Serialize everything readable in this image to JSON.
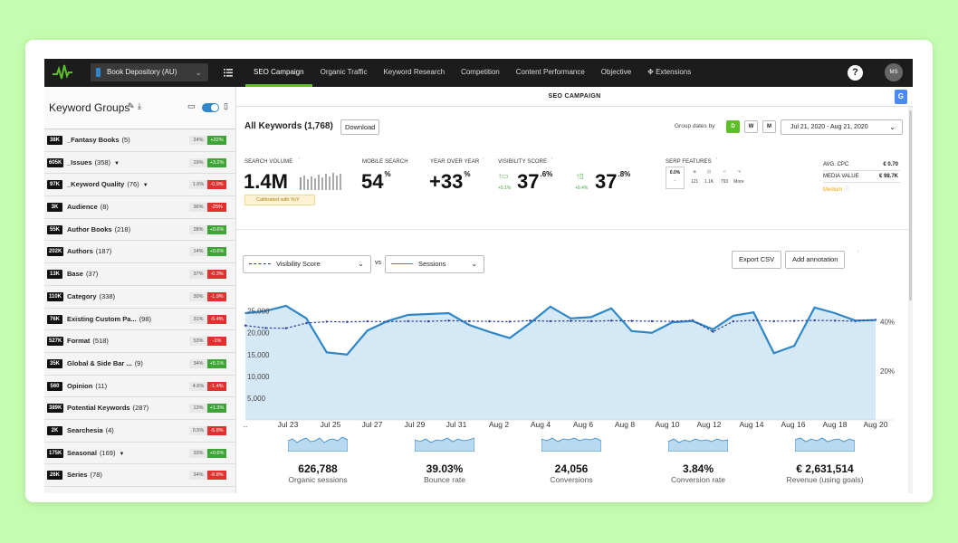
{
  "nav": {
    "account": "Book Depository (AU)",
    "tabs": [
      "SEO Campaign",
      "Organic Traffic",
      "Keyword Research",
      "Competition",
      "Content Performance",
      "Objective",
      "Extensions"
    ],
    "active_tab": 0,
    "help": "?",
    "avatar": "MS"
  },
  "sidebar": {
    "title": "Keyword Groups",
    "items": [
      {
        "badge": "38K",
        "name": "_Fantasy Books",
        "count": "(5)",
        "pct": "24%",
        "chg": "+22%",
        "up": true
      },
      {
        "badge": "605K",
        "name": "_Issues",
        "count": "(358)",
        "pct": "19%",
        "chg": "+3.2%",
        "up": true,
        "caret": true
      },
      {
        "badge": "97K",
        "name": "_Keyword Quality",
        "count": "(76)",
        "pct": "1.6%",
        "chg": "-0.9%",
        "up": false,
        "caret": true
      },
      {
        "badge": "3K",
        "name": "Audience",
        "count": "(8)",
        "pct": "36%",
        "chg": "-25%",
        "up": false
      },
      {
        "badge": "55K",
        "name": "Author Books",
        "count": "(218)",
        "pct": "28%",
        "chg": "+0.6%",
        "up": true
      },
      {
        "badge": "202K",
        "name": "Authors",
        "count": "(187)",
        "pct": "14%",
        "chg": "+0.6%",
        "up": true
      },
      {
        "badge": "13K",
        "name": "Base",
        "count": "(37)",
        "pct": "37%",
        "chg": "-0.3%",
        "up": false
      },
      {
        "badge": "110K",
        "name": "Category",
        "count": "(338)",
        "pct": "30%",
        "chg": "-1.9%",
        "up": false
      },
      {
        "badge": "76K",
        "name": "Existing Custom Pa...",
        "count": "(98)",
        "pct": "31%",
        "chg": "-5.4%",
        "up": false
      },
      {
        "badge": "527K",
        "name": "Format",
        "count": "(518)",
        "pct": "53%",
        "chg": "-1%",
        "up": false
      },
      {
        "badge": "35K",
        "name": "Global & Side Bar ...",
        "count": "(9)",
        "pct": "34%",
        "chg": "+5.1%",
        "up": true
      },
      {
        "badge": "560",
        "name": "Opinion",
        "count": "(11)",
        "pct": "4.6%",
        "chg": "-1.4%",
        "up": false
      },
      {
        "badge": "389K",
        "name": "Potential Keywords",
        "count": "(287)",
        "pct": "13%",
        "chg": "+1.3%",
        "up": true
      },
      {
        "badge": "2K",
        "name": "Searchesia",
        "count": "(4)",
        "pct": "0.5%",
        "chg": "-5.8%",
        "up": false
      },
      {
        "badge": "175K",
        "name": "Seasonal",
        "count": "(169)",
        "pct": "33%",
        "chg": "+0.6%",
        "up": true,
        "caret": true
      },
      {
        "badge": "26K",
        "name": "Series",
        "count": "(78)",
        "pct": "34%",
        "chg": "-8.8%",
        "up": false
      }
    ]
  },
  "header": {
    "title": "SEO CAMPAIGN",
    "translate_icon": "G"
  },
  "toolbar": {
    "all_keywords": "All Keywords (1,768)",
    "download": "Download",
    "group_dates": "Group dates by",
    "d": "D",
    "w": "W",
    "m": "M",
    "date_range": "Jul 21, 2020 - Aug 21, 2020"
  },
  "metrics": {
    "search_volume": {
      "label": "SEARCH VOLUME",
      "value": "1.4M",
      "calibrated": "Calibrated with YoY"
    },
    "mobile_search": {
      "label": "MOBILE SEARCH",
      "value": "54",
      "unit": "%"
    },
    "yoy": {
      "label": "YEAR OVER YEAR",
      "value": "+33",
      "unit": "%"
    },
    "visibility": {
      "label": "VISIBILITY SCORE",
      "desk_value": "37",
      "desk_dec": ".6%",
      "desk_chg": "+5.1%",
      "mob_value": "37",
      "mob_dec": ".8%",
      "mob_chg": "+0.4%"
    },
    "serp": {
      "label": "SERP FEATURES",
      "first": "0.0%",
      "first_sub": "-",
      "items": [
        "121",
        "1.1K",
        "793",
        "More"
      ]
    },
    "avg_cpc": {
      "label": "AVG. CPC",
      "value": "€ 0.70"
    },
    "media_value": {
      "label": "MEDIA VALUE",
      "value": "€ 98.7K"
    },
    "level": "Medium"
  },
  "chart_controls": {
    "left": "Visibility Score",
    "vs": "vs",
    "right": "Sessions",
    "export": "Export CSV",
    "annotation": "Add annotation"
  },
  "chart_data": {
    "type": "line",
    "x_ticks": [
      "..",
      "Jul 23",
      "Jul 25",
      "Jul 27",
      "Jul 29",
      "Jul 31",
      "Aug 2",
      "Aug 4",
      "Aug 6",
      "Aug 8",
      "Aug 10",
      "Aug 12",
      "Aug 14",
      "Aug 16",
      "Aug 18",
      "Aug 20"
    ],
    "y_left_ticks": [
      "25,000",
      "20,000",
      "15,000",
      "10,000",
      "5,000"
    ],
    "y_right_ticks": [
      "40%",
      "20%"
    ],
    "ylim_left": [
      0,
      27000
    ],
    "ylim_right": [
      0,
      48
    ],
    "series": [
      {
        "name": "Sessions",
        "axis": "left",
        "values": [
          24500,
          25000,
          26200,
          23300,
          15500,
          15000,
          20500,
          22700,
          24100,
          24300,
          24500,
          21800,
          20200,
          18800,
          22200,
          26000,
          23300,
          23600,
          25600,
          20400,
          20000,
          22400,
          22700,
          20800,
          23900,
          24700,
          15300,
          17000,
          25800,
          24500,
          22800,
          22900
        ]
      },
      {
        "name": "Visibility Score",
        "axis": "right",
        "values": [
          38.5,
          37.5,
          37.4,
          39.5,
          40.1,
          40.0,
          40.2,
          40.1,
          40.3,
          40.2,
          40.5,
          40.3,
          40.2,
          40.1,
          40.5,
          40.3,
          40.4,
          40.3,
          40.5,
          40.4,
          40.3,
          40.2,
          40.6,
          36.0,
          40.2,
          40.6,
          40.3,
          40.4,
          40.6,
          40.5,
          40.3,
          40.8
        ]
      }
    ]
  },
  "kpis": [
    {
      "value": "626,788",
      "label": "Organic sessions"
    },
    {
      "value": "39.03%",
      "label": "Bounce rate"
    },
    {
      "value": "24,056",
      "label": "Conversions"
    },
    {
      "value": "3.84%",
      "label": "Conversion rate"
    },
    {
      "value": "€ 2,631,514",
      "label": "Revenue (using goals)"
    }
  ],
  "colors": {
    "accent": "#5cbf2a",
    "line": "#2f86c8",
    "fill": "#d5e8f6",
    "negative": "#e03030",
    "positive": "#3da535",
    "dark": "#1c1c1c"
  }
}
